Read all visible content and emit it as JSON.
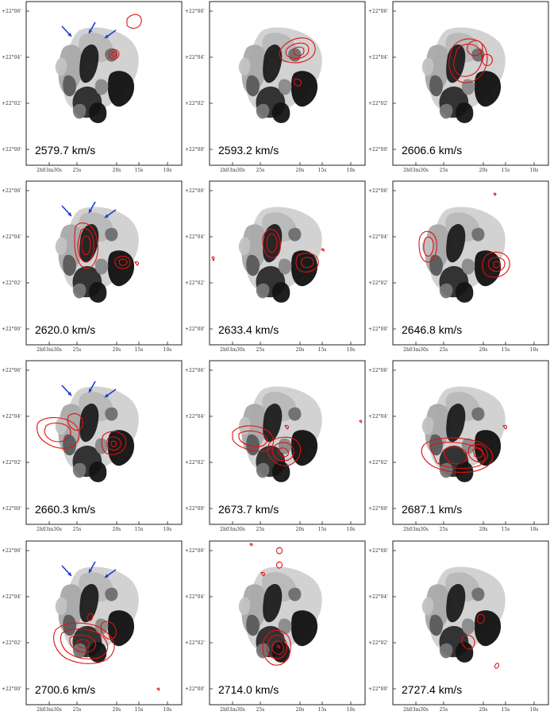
{
  "figure": {
    "y_tick_labels": [
      "+22°06'",
      "+22°04'",
      "+22°02'",
      "+22°00'"
    ],
    "x_tick_labels": [
      "2h03m30s",
      "25s",
      "20s",
      "15s",
      "10s"
    ],
    "colors": {
      "contour": "#e01010",
      "arrow": "#1a3cc8",
      "frame": "#222222"
    },
    "panels": [
      {
        "velocity": "2579.7 km/s",
        "arrows": true
      },
      {
        "velocity": "2593.2 km/s",
        "arrows": false
      },
      {
        "velocity": "2606.6 km/s",
        "arrows": false
      },
      {
        "velocity": "2620.0 km/s",
        "arrows": true
      },
      {
        "velocity": "2633.4 km/s",
        "arrows": false
      },
      {
        "velocity": "2646.8 km/s",
        "arrows": false
      },
      {
        "velocity": "2660.3 km/s",
        "arrows": true
      },
      {
        "velocity": "2673.7 km/s",
        "arrows": false
      },
      {
        "velocity": "2687.1 km/s",
        "arrows": false
      },
      {
        "velocity": "2700.6 km/s",
        "arrows": true
      },
      {
        "velocity": "2714.0 km/s",
        "arrows": false
      },
      {
        "velocity": "2727.4 km/s",
        "arrows": false
      }
    ]
  }
}
